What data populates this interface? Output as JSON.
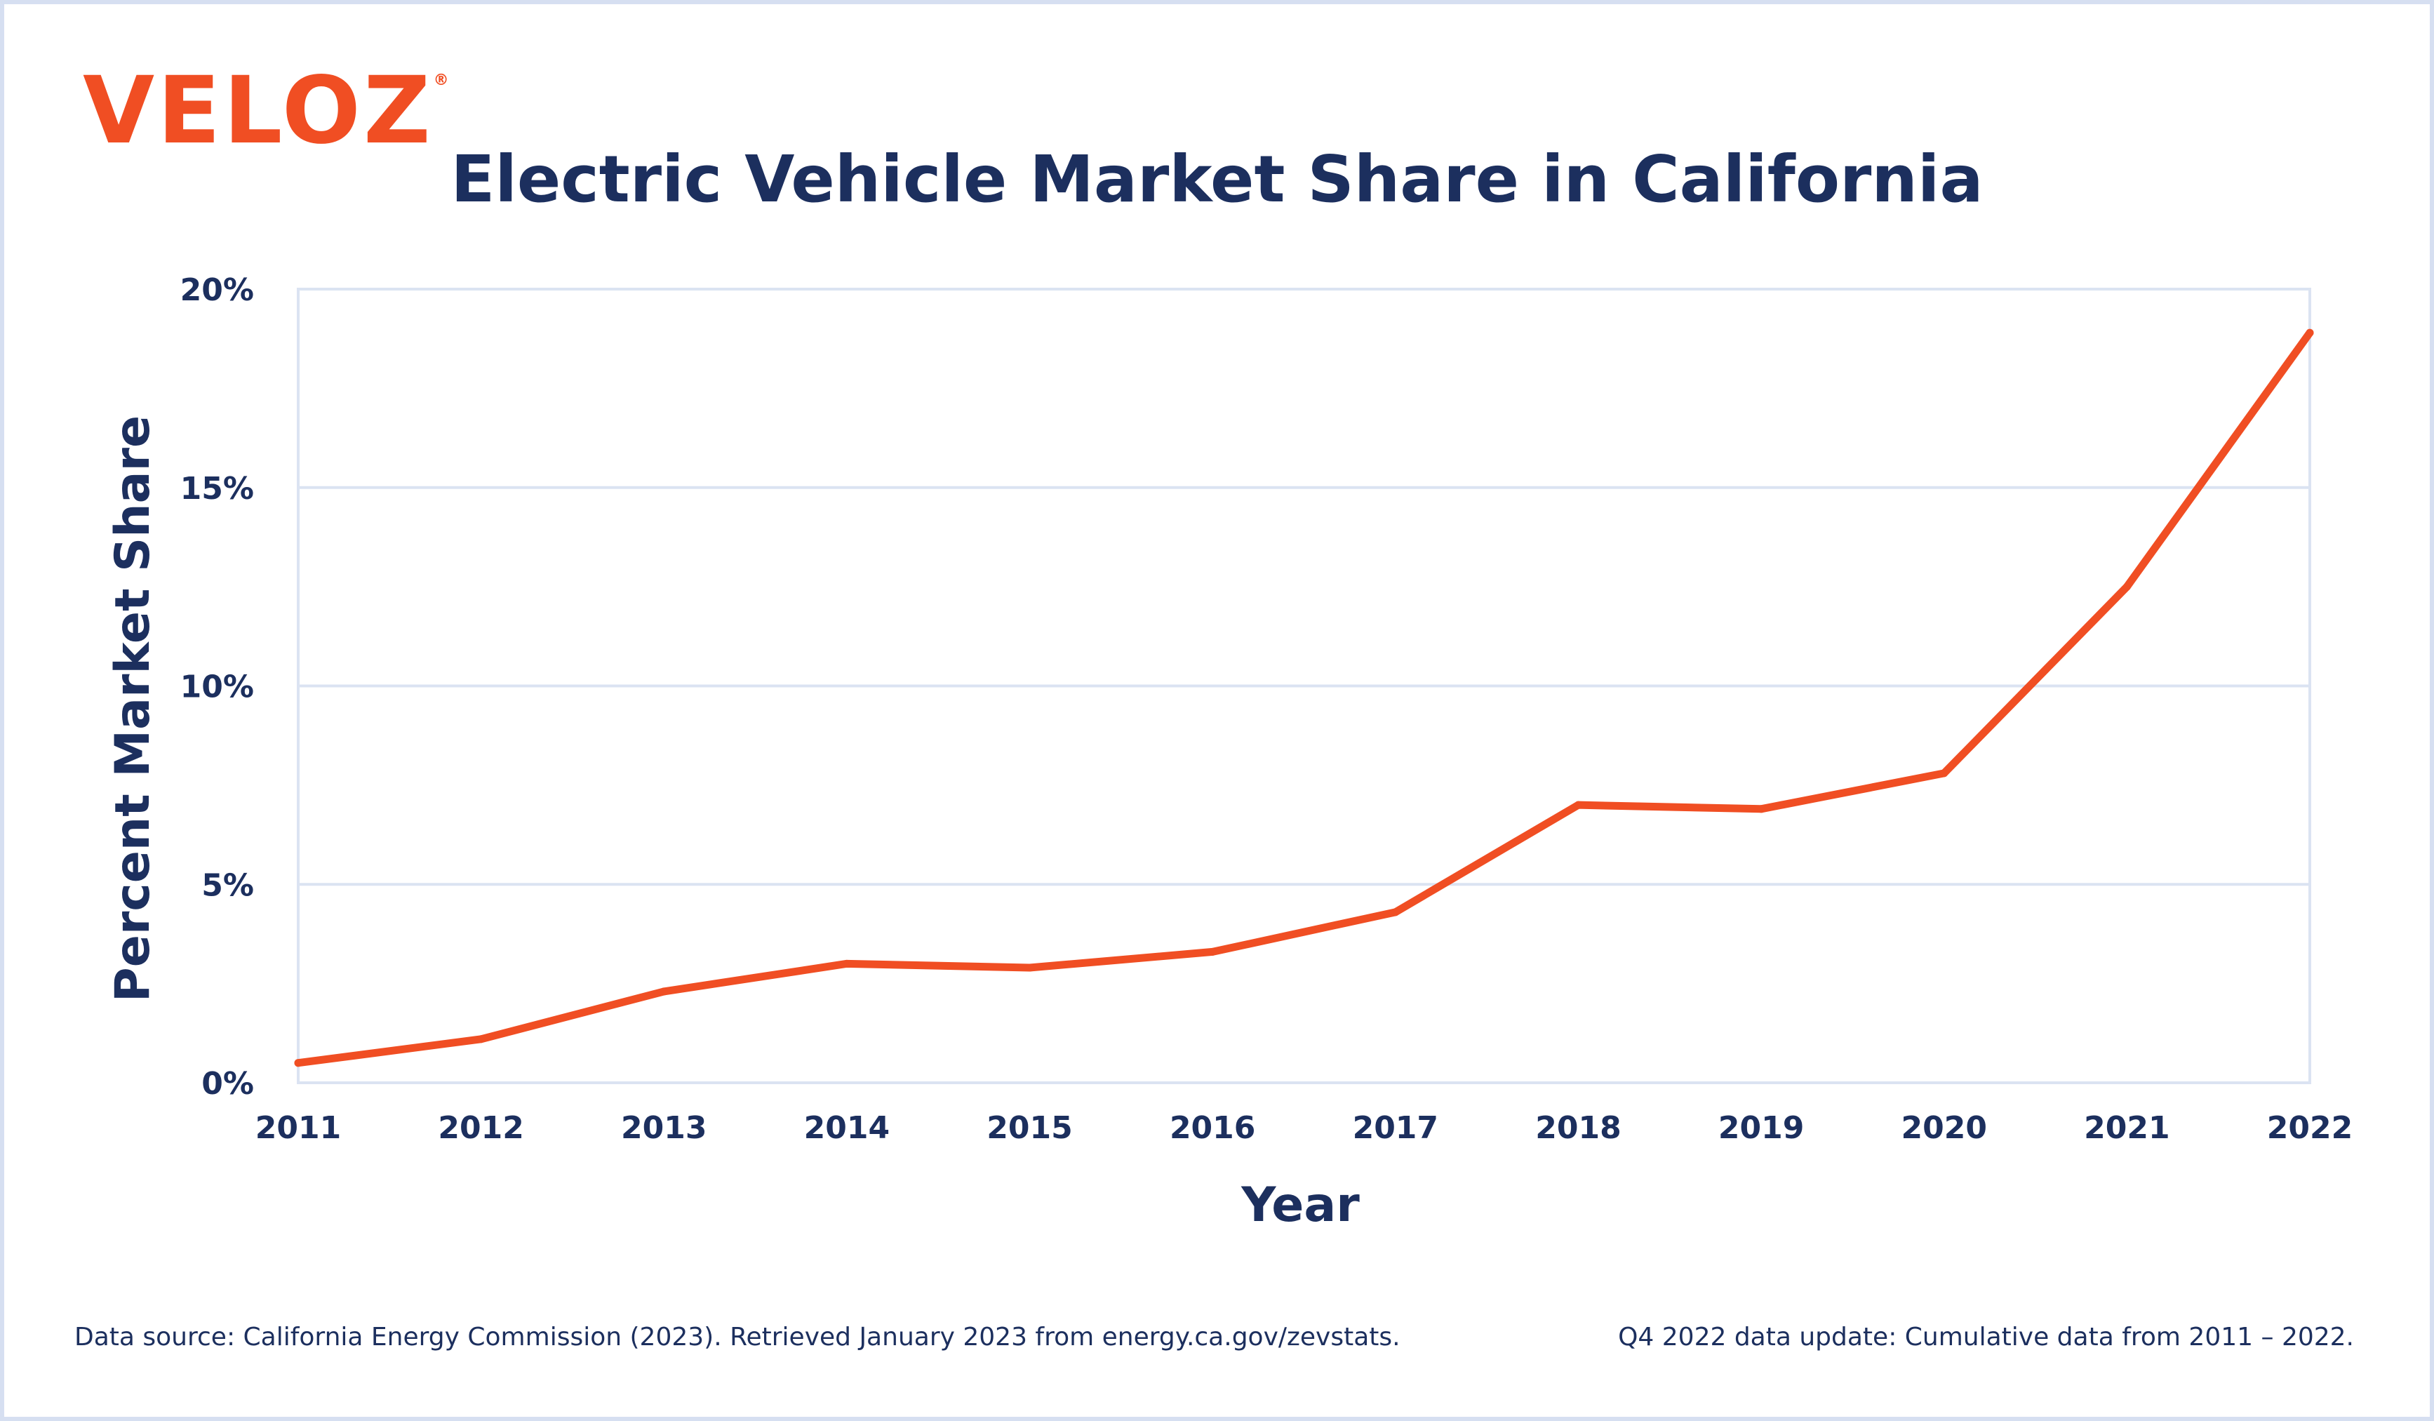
{
  "logo": {
    "text": "VELOZ",
    "registered": "®"
  },
  "footer": {
    "source": "Data source: California Energy Commission (2023). Retrieved January 2023 from energy.ca.gov/zevstats.",
    "note": "Q4 2022 data update: Cumulative data from 2011 – 2022."
  },
  "colors": {
    "line": "#f04e23",
    "text": "#1c2f5e",
    "grid": "#dbe3f2",
    "frame": "#d6dff1"
  },
  "chart_data": {
    "type": "line",
    "title": "Electric Vehicle Market Share in California",
    "xlabel": "Year",
    "ylabel": "Percent Market Share",
    "categories": [
      "2011",
      "2012",
      "2013",
      "2014",
      "2015",
      "2016",
      "2017",
      "2018",
      "2019",
      "2020",
      "2021",
      "2022"
    ],
    "series": [
      {
        "values": [
          0.5,
          1.1,
          2.3,
          3.0,
          2.9,
          3.3,
          4.3,
          7.0,
          6.9,
          7.8,
          12.5,
          18.9
        ]
      }
    ],
    "ylim": [
      0,
      20
    ],
    "yticks": [
      0,
      5,
      10,
      15,
      20
    ],
    "ytick_labels": [
      "0%",
      "5%",
      "10%",
      "15%",
      "20%"
    ],
    "grid": true,
    "legend": "none"
  }
}
